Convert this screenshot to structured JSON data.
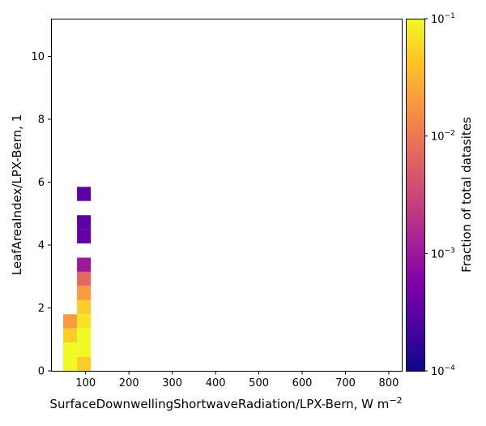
{
  "chart_data": {
    "type": "heatmap",
    "xlabel": "SurfaceDownwellingShortwaveRadiation/LPX-Bern,  W m",
    "xlabel_sup": "−2",
    "ylabel": "LeafAreaIndex/LPX-Bern,  1",
    "xlim": [
      20,
      830
    ],
    "ylim": [
      0,
      11.2
    ],
    "xticks": [
      100,
      200,
      300,
      400,
      500,
      600,
      700,
      800
    ],
    "yticks": [
      0,
      2,
      4,
      6,
      8,
      10
    ],
    "colorbar": {
      "label": "Fraction of total datasites",
      "scale": "log",
      "colormap": "plasma",
      "range": [
        0.0001,
        0.1
      ],
      "ticks": [
        {
          "value": 0.1,
          "base": "10",
          "exp": "−1"
        },
        {
          "value": 0.01,
          "base": "10",
          "exp": "−2"
        },
        {
          "value": 0.001,
          "base": "10",
          "exp": "−3"
        },
        {
          "value": 0.0001,
          "base": "10",
          "exp": "−4"
        }
      ]
    },
    "cells": [
      {
        "x0": 48,
        "x1": 80,
        "y0": 0.0,
        "y1": 0.45,
        "value": 0.1
      },
      {
        "x0": 48,
        "x1": 80,
        "y0": 0.45,
        "y1": 0.9,
        "value": 0.1
      },
      {
        "x0": 48,
        "x1": 80,
        "y0": 0.9,
        "y1": 1.35,
        "value": 0.05
      },
      {
        "x0": 48,
        "x1": 80,
        "y0": 1.35,
        "y1": 1.8,
        "value": 0.02
      },
      {
        "x0": 80,
        "x1": 112,
        "y0": 0.0,
        "y1": 0.45,
        "value": 0.05
      },
      {
        "x0": 80,
        "x1": 112,
        "y0": 0.45,
        "y1": 0.9,
        "value": 0.1
      },
      {
        "x0": 80,
        "x1": 112,
        "y0": 0.9,
        "y1": 1.35,
        "value": 0.1
      },
      {
        "x0": 80,
        "x1": 112,
        "y0": 1.35,
        "y1": 1.8,
        "value": 0.07
      },
      {
        "x0": 80,
        "x1": 112,
        "y0": 1.8,
        "y1": 2.25,
        "value": 0.05
      },
      {
        "x0": 80,
        "x1": 112,
        "y0": 2.25,
        "y1": 2.7,
        "value": 0.02
      },
      {
        "x0": 80,
        "x1": 112,
        "y0": 2.7,
        "y1": 3.15,
        "value": 0.007
      },
      {
        "x0": 80,
        "x1": 112,
        "y0": 3.15,
        "y1": 3.6,
        "value": 0.001
      },
      {
        "x0": 80,
        "x1": 112,
        "y0": 4.05,
        "y1": 4.5,
        "value": 0.00035
      },
      {
        "x0": 80,
        "x1": 112,
        "y0": 4.5,
        "y1": 4.95,
        "value": 0.0003
      },
      {
        "x0": 80,
        "x1": 112,
        "y0": 5.4,
        "y1": 5.85,
        "value": 0.0003
      }
    ]
  }
}
